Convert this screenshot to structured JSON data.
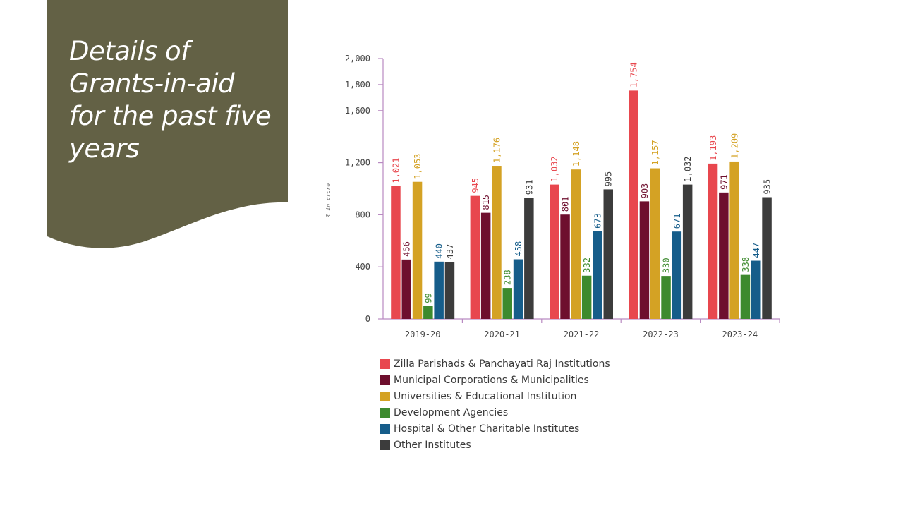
{
  "slide": {
    "title_lines": [
      "Details of",
      "Grants-in-aid",
      "for the past five",
      "years"
    ],
    "panel_color": "#636145"
  },
  "chart_data": {
    "type": "bar",
    "ylabel": "₹ in crore",
    "ylim": [
      0,
      2000
    ],
    "y_ticks": [
      "0",
      "400",
      "800",
      "1,200",
      "1,600",
      "1,800",
      "2,000"
    ],
    "y_tick_values": [
      0,
      400,
      800,
      1200,
      1600,
      1800,
      2000
    ],
    "categories": [
      "2019-20",
      "2020-21",
      "2021-22",
      "2022-23",
      "2023-24"
    ],
    "series": [
      {
        "name": "Zilla Parishads & Panchayati Raj Institutions",
        "color": "#e8474e",
        "values": [
          1021,
          945,
          1032,
          1754,
          1193
        ],
        "labels": [
          "1,021",
          "945",
          "1,032",
          "1,754",
          "1,193"
        ]
      },
      {
        "name": "Municipal Corporations & Municipalities",
        "color": "#6e0f2e",
        "values": [
          456,
          815,
          801,
          903,
          971
        ],
        "labels": [
          "456",
          "815",
          "801",
          "903",
          "971"
        ]
      },
      {
        "name": "Universities & Educational Institution",
        "color": "#d4a224",
        "values": [
          1053,
          1176,
          1148,
          1157,
          1209
        ],
        "labels": [
          "1,053",
          "1,176",
          "1,148",
          "1,157",
          "1,209"
        ]
      },
      {
        "name": "Development Agencies",
        "color": "#3d8a2e",
        "values": [
          99,
          238,
          332,
          330,
          338
        ],
        "labels": [
          "99",
          "238",
          "332",
          "330",
          "338"
        ]
      },
      {
        "name": "Hospital & Other Charitable Institutes",
        "color": "#165d8a",
        "values": [
          440,
          458,
          673,
          671,
          447
        ],
        "labels": [
          "440",
          "458",
          "673",
          "671",
          "447"
        ]
      },
      {
        "name": "Other Institutes",
        "color": "#3c3c3c",
        "values": [
          437,
          931,
          995,
          1032,
          935
        ],
        "labels": [
          "437",
          "931",
          "995",
          "1,032",
          "935"
        ]
      }
    ],
    "legend": "bottom"
  }
}
